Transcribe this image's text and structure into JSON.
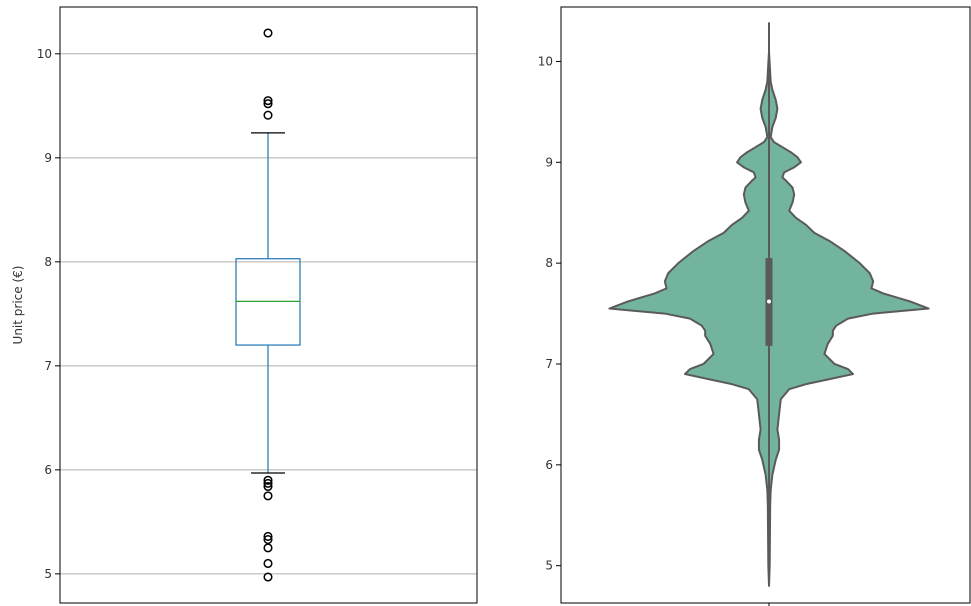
{
  "chart_data": [
    {
      "type": "box",
      "ylabel": "Unit price (€)",
      "ylim": [
        4.72,
        10.45
      ],
      "yticks": [
        5,
        6,
        7,
        8,
        9,
        10
      ],
      "yticklabels": [
        "5",
        "6",
        "7",
        "8",
        "9",
        "10"
      ],
      "grid": "horizontal",
      "box": {
        "whisker_low": 5.97,
        "q1": 7.2,
        "median": 7.62,
        "q3": 8.03,
        "whisker_high": 9.24
      },
      "outliers": [
        10.2,
        9.55,
        9.52,
        9.41,
        5.9,
        5.87,
        5.84,
        5.75,
        5.36,
        5.33,
        5.25,
        5.1,
        4.97
      ],
      "colors": {
        "box": "#1f77b4",
        "median": "#2ca02c",
        "whisker_cap": "#000000",
        "grid": "#b0b0b0",
        "outlier": "#000000"
      }
    },
    {
      "type": "violin",
      "ylim": [
        4.63,
        10.54
      ],
      "yticks": [
        5,
        6,
        7,
        8,
        9,
        10
      ],
      "yticklabels": [
        "5",
        "6",
        "7",
        "8",
        "9",
        "10"
      ],
      "grid": "none",
      "range": [
        4.8,
        10.38
      ],
      "q1": 7.18,
      "median": 7.62,
      "q3": 8.05,
      "density_profile": [
        [
          10.38,
          0.0
        ],
        [
          10.1,
          0.0
        ],
        [
          9.8,
          0.01
        ],
        [
          9.72,
          0.02
        ],
        [
          9.62,
          0.04
        ],
        [
          9.53,
          0.05
        ],
        [
          9.44,
          0.04
        ],
        [
          9.35,
          0.02
        ],
        [
          9.25,
          0.01
        ],
        [
          9.2,
          0.03
        ],
        [
          9.15,
          0.08
        ],
        [
          9.1,
          0.13
        ],
        [
          9.05,
          0.17
        ],
        [
          9.0,
          0.19
        ],
        [
          8.95,
          0.15
        ],
        [
          8.9,
          0.09
        ],
        [
          8.85,
          0.08
        ],
        [
          8.82,
          0.1
        ],
        [
          8.75,
          0.14
        ],
        [
          8.68,
          0.15
        ],
        [
          8.6,
          0.14
        ],
        [
          8.52,
          0.12
        ],
        [
          8.45,
          0.16
        ],
        [
          8.38,
          0.22
        ],
        [
          8.3,
          0.27
        ],
        [
          8.22,
          0.36
        ],
        [
          8.12,
          0.45
        ],
        [
          8.0,
          0.54
        ],
        [
          7.9,
          0.6
        ],
        [
          7.82,
          0.62
        ],
        [
          7.75,
          0.61
        ],
        [
          7.7,
          0.68
        ],
        [
          7.62,
          0.84
        ],
        [
          7.55,
          0.95
        ],
        [
          7.5,
          0.62
        ],
        [
          7.45,
          0.47
        ],
        [
          7.38,
          0.4
        ],
        [
          7.33,
          0.38
        ],
        [
          7.28,
          0.38
        ],
        [
          7.2,
          0.35
        ],
        [
          7.1,
          0.33
        ],
        [
          7.0,
          0.39
        ],
        [
          6.95,
          0.47
        ],
        [
          6.9,
          0.5
        ],
        [
          6.85,
          0.36
        ],
        [
          6.8,
          0.22
        ],
        [
          6.75,
          0.12
        ],
        [
          6.65,
          0.07
        ],
        [
          6.5,
          0.06
        ],
        [
          6.35,
          0.05
        ],
        [
          6.25,
          0.06
        ],
        [
          6.15,
          0.06
        ],
        [
          6.05,
          0.04
        ],
        [
          5.9,
          0.02
        ],
        [
          5.75,
          0.01
        ],
        [
          5.6,
          0.007
        ],
        [
          5.4,
          0.006
        ],
        [
          5.2,
          0.005
        ],
        [
          5.0,
          0.004
        ],
        [
          4.8,
          0.0
        ]
      ],
      "colors": {
        "body": "#73b49e",
        "edge": "#5a5a5a",
        "inner_box": "#5a5a5a",
        "median_dot": "#ffffff"
      }
    }
  ]
}
